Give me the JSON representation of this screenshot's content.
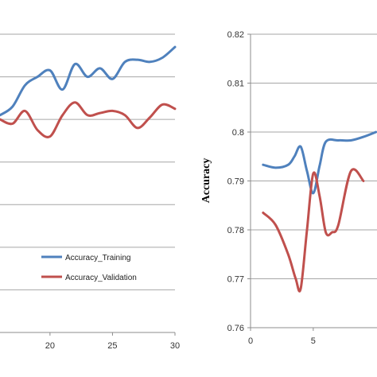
{
  "chart_data": [
    {
      "type": "line",
      "title": "",
      "xlabel": "",
      "ylabel": "",
      "xlim": [
        16,
        30
      ],
      "ylim": [
        0,
        7
      ],
      "x_ticks": [
        "20",
        "25",
        "30"
      ],
      "grid": true,
      "legend_position": "bottom-right",
      "series": [
        {
          "name": "Accuracy_Training",
          "color": "#4f81bd",
          "x": [
            16,
            17,
            18,
            19,
            20,
            21,
            22,
            23,
            24,
            25,
            26,
            27,
            28,
            29,
            30
          ],
          "y": [
            5.1,
            5.3,
            5.8,
            6.0,
            6.15,
            5.7,
            6.3,
            6.0,
            6.2,
            5.95,
            6.35,
            6.4,
            6.35,
            6.45,
            6.7
          ]
        },
        {
          "name": "Accuracy_Validation",
          "color": "#c0504d",
          "x": [
            16,
            17,
            18,
            19,
            20,
            21,
            22,
            23,
            24,
            25,
            26,
            27,
            28,
            29,
            30
          ],
          "y": [
            5.0,
            4.9,
            5.2,
            4.75,
            4.6,
            5.1,
            5.4,
            5.1,
            5.15,
            5.2,
            5.1,
            4.8,
            5.05,
            5.35,
            5.25
          ]
        }
      ]
    },
    {
      "type": "line",
      "title": "",
      "xlabel": "",
      "ylabel": "Accuracy",
      "xlim": [
        0,
        13
      ],
      "ylim": [
        0.76,
        0.82
      ],
      "y_ticks": [
        "0.76",
        "0.77",
        "0.78",
        "0.79",
        "0.8",
        "0.81",
        "0.82"
      ],
      "x_ticks": [
        "0",
        "5"
      ],
      "grid": true,
      "series": [
        {
          "name": "",
          "color": "#4f81bd",
          "x": [
            1,
            2,
            3,
            3.5,
            4,
            4.5,
            5,
            5.5,
            6,
            7,
            8,
            9,
            10
          ],
          "y": [
            0.7933,
            0.7927,
            0.7933,
            0.795,
            0.797,
            0.792,
            0.7875,
            0.793,
            0.798,
            0.7983,
            0.7983,
            0.799,
            0.8
          ]
        },
        {
          "name": "",
          "color": "#c0504d",
          "x": [
            1,
            2,
            3,
            3.6,
            4,
            4.5,
            5,
            5.5,
            6,
            6.5,
            7,
            8,
            9
          ],
          "y": [
            0.7835,
            0.781,
            0.775,
            0.77,
            0.768,
            0.78,
            0.7915,
            0.787,
            0.7795,
            0.7795,
            0.781,
            0.792,
            0.79
          ]
        }
      ]
    }
  ]
}
